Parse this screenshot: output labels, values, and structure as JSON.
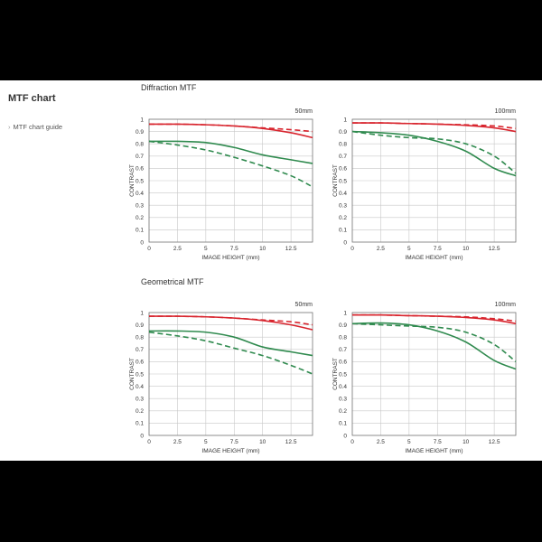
{
  "page": {
    "title": "MTF chart",
    "guide_link": "MTF chart guide",
    "sections": [
      "Diffraction MTF",
      "Geometrical MTF"
    ]
  },
  "colors": {
    "red": "#d8252e",
    "green": "#2f8a4e"
  },
  "chart_data": [
    {
      "id": "d50",
      "type": "line",
      "section": "Diffraction MTF",
      "focal_length": "50mm",
      "xlabel": "IMAGE HEIGHT (mm)",
      "ylabel": "CONTRAST",
      "xlim": [
        0,
        14.4
      ],
      "ylim": [
        0,
        1
      ],
      "xticks": [
        "0",
        "2.5",
        "5",
        "7.5",
        "10",
        "12.5"
      ],
      "yticks": [
        "0",
        "0.1",
        "0.2",
        "0.3",
        "0.4",
        "0.5",
        "0.6",
        "0.7",
        "0.8",
        "0.9",
        "1"
      ],
      "series": [
        {
          "color": "red",
          "style": "solid",
          "points": [
            [
              0,
              0.96
            ],
            [
              2.5,
              0.96
            ],
            [
              5,
              0.955
            ],
            [
              7.5,
              0.945
            ],
            [
              10,
              0.925
            ],
            [
              12.5,
              0.89
            ],
            [
              14.4,
              0.85
            ]
          ]
        },
        {
          "color": "red",
          "style": "dashed",
          "points": [
            [
              0,
              0.96
            ],
            [
              2.5,
              0.96
            ],
            [
              5,
              0.955
            ],
            [
              7.5,
              0.945
            ],
            [
              10,
              0.93
            ],
            [
              12.5,
              0.915
            ],
            [
              14.4,
              0.9
            ]
          ]
        },
        {
          "color": "green",
          "style": "solid",
          "points": [
            [
              0,
              0.82
            ],
            [
              2.5,
              0.82
            ],
            [
              5,
              0.81
            ],
            [
              7.5,
              0.77
            ],
            [
              10,
              0.71
            ],
            [
              12.5,
              0.67
            ],
            [
              14.4,
              0.64
            ]
          ]
        },
        {
          "color": "green",
          "style": "dashed",
          "points": [
            [
              0,
              0.82
            ],
            [
              2.5,
              0.79
            ],
            [
              5,
              0.75
            ],
            [
              7.5,
              0.69
            ],
            [
              10,
              0.62
            ],
            [
              12.5,
              0.54
            ],
            [
              14.4,
              0.45
            ]
          ]
        }
      ]
    },
    {
      "id": "d100",
      "type": "line",
      "section": "Diffraction MTF",
      "focal_length": "100mm",
      "xlabel": "IMAGE HEIGHT (mm)",
      "ylabel": "CONTRAST",
      "xlim": [
        0,
        14.4
      ],
      "ylim": [
        0,
        1
      ],
      "xticks": [
        "0",
        "2.5",
        "5",
        "7.5",
        "10",
        "12.5"
      ],
      "yticks": [
        "0",
        "0.1",
        "0.2",
        "0.3",
        "0.4",
        "0.5",
        "0.6",
        "0.7",
        "0.8",
        "0.9",
        "1"
      ],
      "series": [
        {
          "color": "red",
          "style": "solid",
          "points": [
            [
              0,
              0.97
            ],
            [
              2.5,
              0.97
            ],
            [
              5,
              0.965
            ],
            [
              7.5,
              0.96
            ],
            [
              10,
              0.95
            ],
            [
              12.5,
              0.93
            ],
            [
              14.4,
              0.9
            ]
          ]
        },
        {
          "color": "red",
          "style": "dashed",
          "points": [
            [
              0,
              0.97
            ],
            [
              2.5,
              0.97
            ],
            [
              5,
              0.965
            ],
            [
              7.5,
              0.96
            ],
            [
              10,
              0.955
            ],
            [
              12.5,
              0.945
            ],
            [
              14.4,
              0.925
            ]
          ]
        },
        {
          "color": "green",
          "style": "solid",
          "points": [
            [
              0,
              0.9
            ],
            [
              2.5,
              0.89
            ],
            [
              5,
              0.87
            ],
            [
              7.5,
              0.82
            ],
            [
              10,
              0.74
            ],
            [
              12.5,
              0.6
            ],
            [
              14.4,
              0.54
            ]
          ]
        },
        {
          "color": "green",
          "style": "dashed",
          "points": [
            [
              0,
              0.9
            ],
            [
              2.5,
              0.87
            ],
            [
              5,
              0.85
            ],
            [
              7.5,
              0.84
            ],
            [
              10,
              0.8
            ],
            [
              12.5,
              0.7
            ],
            [
              14.4,
              0.56
            ]
          ]
        }
      ]
    },
    {
      "id": "g50",
      "type": "line",
      "section": "Geometrical MTF",
      "focal_length": "50mm",
      "xlabel": "IMAGE HEIGHT (mm)",
      "ylabel": "CONTRAST",
      "xlim": [
        0,
        14.4
      ],
      "ylim": [
        0,
        1
      ],
      "xticks": [
        "0",
        "2.5",
        "5",
        "7.5",
        "10",
        "12.5"
      ],
      "yticks": [
        "0",
        "0.1",
        "0.2",
        "0.3",
        "0.4",
        "0.5",
        "0.6",
        "0.7",
        "0.8",
        "0.9",
        "1"
      ],
      "series": [
        {
          "color": "red",
          "style": "solid",
          "points": [
            [
              0,
              0.97
            ],
            [
              2.5,
              0.97
            ],
            [
              5,
              0.965
            ],
            [
              7.5,
              0.955
            ],
            [
              10,
              0.935
            ],
            [
              12.5,
              0.9
            ],
            [
              14.4,
              0.86
            ]
          ]
        },
        {
          "color": "red",
          "style": "dashed",
          "points": [
            [
              0,
              0.97
            ],
            [
              2.5,
              0.97
            ],
            [
              5,
              0.965
            ],
            [
              7.5,
              0.955
            ],
            [
              10,
              0.94
            ],
            [
              12.5,
              0.925
            ],
            [
              14.4,
              0.9
            ]
          ]
        },
        {
          "color": "green",
          "style": "solid",
          "points": [
            [
              0,
              0.85
            ],
            [
              2.5,
              0.85
            ],
            [
              5,
              0.84
            ],
            [
              7.5,
              0.8
            ],
            [
              10,
              0.72
            ],
            [
              12.5,
              0.68
            ],
            [
              14.4,
              0.65
            ]
          ]
        },
        {
          "color": "green",
          "style": "dashed",
          "points": [
            [
              0,
              0.84
            ],
            [
              2.5,
              0.81
            ],
            [
              5,
              0.77
            ],
            [
              7.5,
              0.71
            ],
            [
              10,
              0.65
            ],
            [
              12.5,
              0.57
            ],
            [
              14.4,
              0.5
            ]
          ]
        }
      ]
    },
    {
      "id": "g100",
      "type": "line",
      "section": "Geometrical MTF",
      "focal_length": "100mm",
      "xlabel": "IMAGE HEIGHT (mm)",
      "ylabel": "CONTRAST",
      "xlim": [
        0,
        14.4
      ],
      "ylim": [
        0,
        1
      ],
      "xticks": [
        "0",
        "2.5",
        "5",
        "7.5",
        "10",
        "12.5"
      ],
      "yticks": [
        "0",
        "0.1",
        "0.2",
        "0.3",
        "0.4",
        "0.5",
        "0.6",
        "0.7",
        "0.8",
        "0.9",
        "1"
      ],
      "series": [
        {
          "color": "red",
          "style": "solid",
          "points": [
            [
              0,
              0.98
            ],
            [
              2.5,
              0.98
            ],
            [
              5,
              0.975
            ],
            [
              7.5,
              0.97
            ],
            [
              10,
              0.96
            ],
            [
              12.5,
              0.94
            ],
            [
              14.4,
              0.91
            ]
          ]
        },
        {
          "color": "red",
          "style": "dashed",
          "points": [
            [
              0,
              0.98
            ],
            [
              2.5,
              0.98
            ],
            [
              5,
              0.975
            ],
            [
              7.5,
              0.97
            ],
            [
              10,
              0.965
            ],
            [
              12.5,
              0.95
            ],
            [
              14.4,
              0.93
            ]
          ]
        },
        {
          "color": "green",
          "style": "solid",
          "points": [
            [
              0,
              0.91
            ],
            [
              2.5,
              0.915
            ],
            [
              5,
              0.9
            ],
            [
              7.5,
              0.85
            ],
            [
              10,
              0.76
            ],
            [
              12.5,
              0.61
            ],
            [
              14.4,
              0.54
            ]
          ]
        },
        {
          "color": "green",
          "style": "dashed",
          "points": [
            [
              0,
              0.91
            ],
            [
              2.5,
              0.9
            ],
            [
              5,
              0.89
            ],
            [
              7.5,
              0.88
            ],
            [
              10,
              0.84
            ],
            [
              12.5,
              0.74
            ],
            [
              14.4,
              0.6
            ]
          ]
        }
      ]
    }
  ]
}
